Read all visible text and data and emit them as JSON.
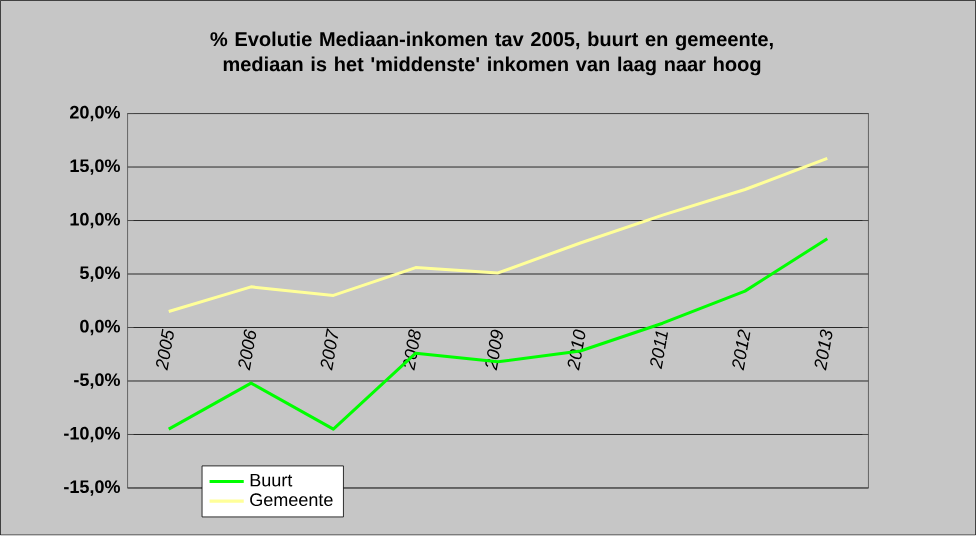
{
  "chart_data": {
    "type": "line",
    "title": "% Evolutie Mediaan-inkomen tav 2005, buurt en gemeente, mediaan is het 'middenste' inkomen van  laag naar hoog",
    "categories": [
      "2005",
      "2006",
      "2007",
      "2008",
      "2009",
      "2010",
      "2011",
      "2012",
      "2013"
    ],
    "series": [
      {
        "name": "Buurt",
        "color": "#00ff00",
        "values": [
          -9.5,
          -5.2,
          -9.5,
          -2.4,
          -3.2,
          -2.2,
          0.4,
          3.4,
          8.3
        ]
      },
      {
        "name": "Gemeente",
        "color": "#ffff99",
        "values": [
          1.5,
          3.8,
          3.0,
          5.6,
          5.1,
          7.9,
          10.5,
          12.9,
          15.8
        ]
      }
    ],
    "ylim": [
      -15,
      20
    ],
    "yticks": [
      {
        "value": -15,
        "label": "-15,0%"
      },
      {
        "value": -10,
        "label": "-10,0%"
      },
      {
        "value": -5,
        "label": "-5,0%"
      },
      {
        "value": 0,
        "label": "0,0%"
      },
      {
        "value": 5,
        "label": "5,0%"
      },
      {
        "value": 10,
        "label": "10,0%"
      },
      {
        "value": 15,
        "label": "15,0%"
      },
      {
        "value": 20,
        "label": "20,0%"
      }
    ],
    "grid": "y",
    "legend": "bottom left",
    "marker": "none",
    "line_style": "solid"
  }
}
